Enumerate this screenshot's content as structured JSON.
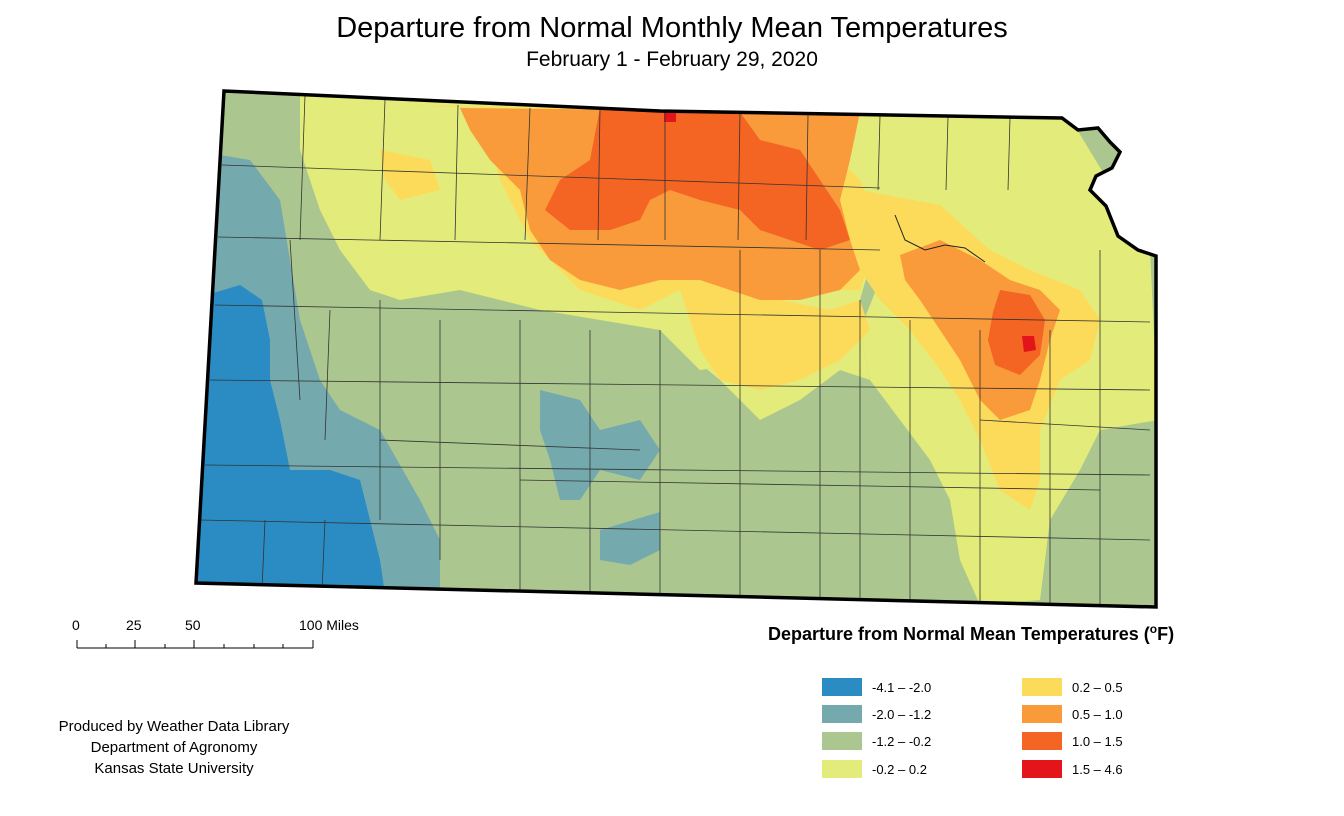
{
  "title": "Departure from Normal Monthly Mean Temperatures",
  "subtitle": "February 1 - February 29, 2020",
  "scale_bar": {
    "labels": [
      "0",
      "25",
      "50",
      "100 Miles"
    ]
  },
  "legend": {
    "title": "Departure from Normal Mean Temperatures (",
    "unit_sup": "o",
    "unit_tail": "F)",
    "classes": [
      {
        "label": "-4.1 – -2.0",
        "color": "#2b8cc4"
      },
      {
        "label": "-2.0 – -1.2",
        "color": "#74a9ae"
      },
      {
        "label": "-1.2 – -0.2",
        "color": "#abc78f"
      },
      {
        "label": "-0.2 – 0.2",
        "color": "#e3ec7a"
      },
      {
        "label": "0.2 – 0.5",
        "color": "#fcdb5b"
      },
      {
        "label": "0.5 – 1.0",
        "color": "#f99b3b"
      },
      {
        "label": "1.0 – 1.5",
        "color": "#f46423"
      },
      {
        "label": "1.5 – 4.6",
        "color": "#e3141a"
      }
    ]
  },
  "credits": [
    "Produced by Weather Data Library",
    "Department of Agronomy",
    "Kansas State University"
  ]
}
